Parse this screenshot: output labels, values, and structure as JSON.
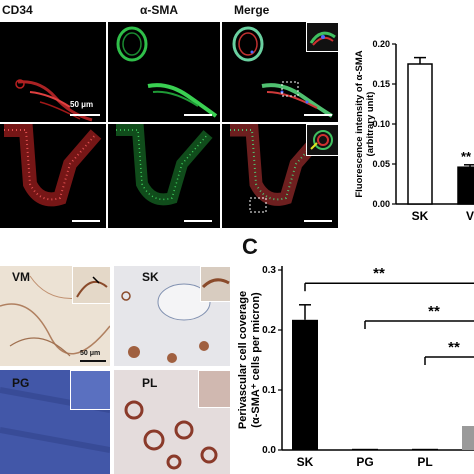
{
  "figure": {
    "top_labels": {
      "cd34": "CD34",
      "asma": "α-SMA",
      "merge": "Merge"
    },
    "scale_bar_top": "50 μm",
    "histo_labels": {
      "vm": "VM",
      "sk": "SK",
      "pg": "PG",
      "pl": "PL"
    },
    "scale_bar_histo": "50 μm",
    "panel_c_letter": "C",
    "colors": {
      "red_channel": "#d02a2a",
      "green_channel": "#2fb84a",
      "brown_stain": "#8a4a2a",
      "blue_stain": "#5a6fb0"
    }
  },
  "chart_top": {
    "type": "bar",
    "ylabel_lines": [
      "Fluorescence intensity of α-SMA",
      "(arbitrary unit)"
    ],
    "ticks": [
      "0.00",
      "0.05",
      "0.10",
      "0.15",
      "0.20"
    ],
    "ylim": [
      0,
      0.2
    ],
    "categories": [
      "SK",
      "V"
    ],
    "values": [
      0.175,
      0.046
    ],
    "errors": [
      0.008,
      0.003
    ],
    "fills": [
      "#ffffff",
      "#000000"
    ],
    "sig": "**"
  },
  "chart_data": {
    "type": "bar",
    "ylabel_lines": [
      "Perivascular cell coverage",
      "(α-SMA⁺ cells per micron)"
    ],
    "ticks": [
      "0.0",
      "0.1",
      "0.2",
      "0.3"
    ],
    "ylim": [
      0,
      0.3
    ],
    "categories": [
      "SK",
      "PG",
      "PL"
    ],
    "values": [
      0.217,
      0.002,
      0.002
    ],
    "errors": [
      0.025,
      0,
      0
    ],
    "extra_bar_value": 0.04,
    "sig": [
      "**",
      "**",
      "**"
    ]
  }
}
